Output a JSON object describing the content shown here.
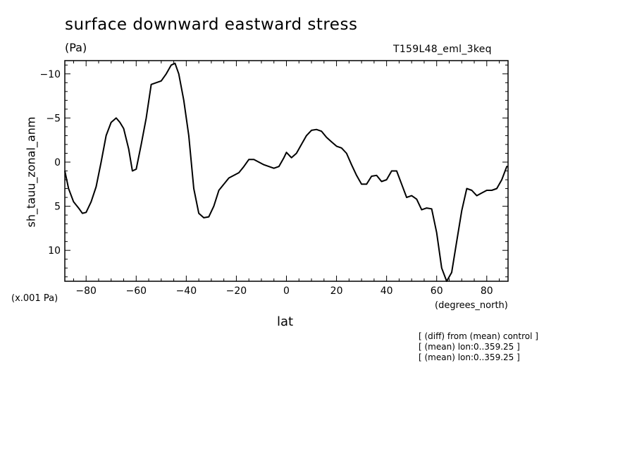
{
  "chart_data": {
    "type": "line",
    "title": "surface downward eastward stress",
    "units": "(Pa)",
    "run_label": "T159L48_eml_3keq",
    "ylabel": "sh_tauu_zonal_anm",
    "y_scale_label": "(x.001 Pa)",
    "xlabel": "lat",
    "x_units": "(degrees_north)",
    "xlim": [
      -88.5,
      88.5
    ],
    "ylim": [
      13.5,
      -11.5
    ],
    "y_inverted": true,
    "x_ticks": [
      -80,
      -60,
      -40,
      -20,
      0,
      20,
      40,
      60,
      80
    ],
    "x_tick_labels": [
      "-80",
      "-60",
      "-40",
      "-20",
      "0",
      "20",
      "40",
      "60",
      "80"
    ],
    "y_ticks": [
      -10,
      -5,
      0,
      5,
      10
    ],
    "y_tick_labels": [
      "-10",
      "-5",
      "0",
      "5",
      "10"
    ],
    "grid": false,
    "series": [
      {
        "x": [
          -88.5,
          -87,
          -85,
          -83,
          -81.5,
          -80,
          -78,
          -76,
          -74,
          -72,
          -70,
          -68,
          -66.5,
          -65,
          -63,
          -61.5,
          -60,
          -58,
          -56,
          -54,
          -52,
          -50,
          -48,
          -46,
          -44.5,
          -43,
          -41,
          -39,
          -37,
          -35,
          -33,
          -31,
          -29,
          -27,
          -25,
          -23,
          -21,
          -19,
          -17,
          -15,
          -13,
          -11,
          -9,
          -7,
          -5,
          -3,
          -1,
          0,
          2,
          4,
          6,
          8,
          10,
          12,
          14,
          16,
          18,
          20,
          22,
          24,
          26,
          28,
          30,
          32,
          34,
          36,
          38,
          40,
          42,
          44,
          46,
          48,
          50,
          52,
          54,
          56,
          58,
          60,
          62,
          64,
          66,
          68,
          70,
          72,
          74,
          76,
          78,
          80,
          82,
          84,
          86,
          88,
          88.5
        ],
        "y": [
          1,
          3,
          4.5,
          5.2,
          5.8,
          5.7,
          4.5,
          2.8,
          0,
          -3,
          -4.5,
          -5,
          -4.5,
          -3.8,
          -1.5,
          1,
          0.8,
          -2,
          -5,
          -8.8,
          -9,
          -9.2,
          -10,
          -11,
          -11.2,
          -10,
          -7,
          -3,
          3,
          5.8,
          6.3,
          6.2,
          5,
          3.2,
          2.5,
          1.8,
          1.5,
          1.2,
          0.5,
          -0.3,
          -0.3,
          0,
          0.3,
          0.5,
          0.7,
          0.5,
          -0.5,
          -1.1,
          -0.5,
          -1.0,
          -2.0,
          -3.0,
          -3.6,
          -3.7,
          -3.5,
          -2.8,
          -2.3,
          -1.8,
          -1.6,
          -1.0,
          0.3,
          1.5,
          2.5,
          2.5,
          1.6,
          1.5,
          2.2,
          2.0,
          1.0,
          1.0,
          2.5,
          4.0,
          3.8,
          4.2,
          5.4,
          5.2,
          5.3,
          8,
          12,
          13.5,
          12.5,
          9.0,
          5.5,
          3.0,
          3.2,
          3.8,
          3.5,
          3.2,
          3.2,
          3.0,
          2.0,
          0.5,
          0.5
        ]
      }
    ],
    "notes": [
      "[ (diff) from (mean) control ]",
      "[ (mean) lon:0..359.25 ]",
      "[ (mean) lon:0..359.25 ]"
    ]
  }
}
